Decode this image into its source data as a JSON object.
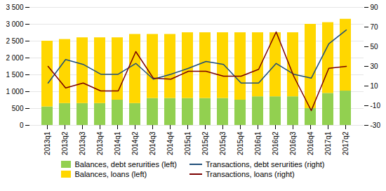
{
  "chart_data": {
    "type": "bar",
    "stacked": true,
    "grid": true,
    "legend": "bottom",
    "categories": [
      "2013q1",
      "2013q2",
      "2013q3",
      "2013q4",
      "2014q1",
      "2014q2",
      "2014q3",
      "2014q4",
      "2015q1",
      "2015q2",
      "2015q3",
      "2015q4",
      "2016q1",
      "2016q2",
      "2016q3",
      "2016q4",
      "2017q1",
      "2017q2"
    ],
    "ylim": [
      0,
      3500
    ],
    "yticks": [
      0,
      500,
      {
        "value": 1000,
        "label": "1 000"
      },
      {
        "value": 1500,
        "label": "1 500"
      },
      {
        "value": 2000,
        "label": "2 000"
      },
      {
        "value": 2500,
        "label": "2 500"
      },
      {
        "value": 3000,
        "label": "3 000"
      },
      {
        "value": 3500,
        "label": "3 500"
      }
    ],
    "y2lim": [
      -30,
      90
    ],
    "y2ticks": [
      -30,
      -10,
      10,
      30,
      50,
      70,
      90
    ],
    "series": [
      {
        "name": "Balances, debt serurities (left)",
        "type": "bar",
        "color": "#92d050",
        "values": [
          550,
          650,
          650,
          650,
          750,
          650,
          800,
          800,
          800,
          800,
          800,
          750,
          850,
          850,
          850,
          500,
          950,
          1020
        ]
      },
      {
        "name": "Balances, loans (left)",
        "type": "bar",
        "color": "#ffd700",
        "values": [
          1950,
          1900,
          1950,
          1950,
          1850,
          2050,
          1900,
          1900,
          1950,
          1950,
          1950,
          2000,
          1900,
          1900,
          1900,
          2500,
          2100,
          2130
        ]
      },
      {
        "name": "Transactions, debt serurities (right)",
        "type": "line",
        "axis": "y2",
        "color": "#1f4e79",
        "values": [
          13,
          37,
          32,
          22,
          22,
          33,
          17,
          22,
          28,
          35,
          32,
          13,
          13,
          33,
          22,
          18,
          53,
          67
        ]
      },
      {
        "name": "Transactions, loans (right)",
        "type": "line",
        "axis": "y2",
        "color": "#7b0000",
        "values": [
          30,
          8,
          13,
          5,
          5,
          45,
          18,
          17,
          25,
          25,
          20,
          20,
          27,
          65,
          20,
          -15,
          28,
          30
        ]
      }
    ]
  }
}
